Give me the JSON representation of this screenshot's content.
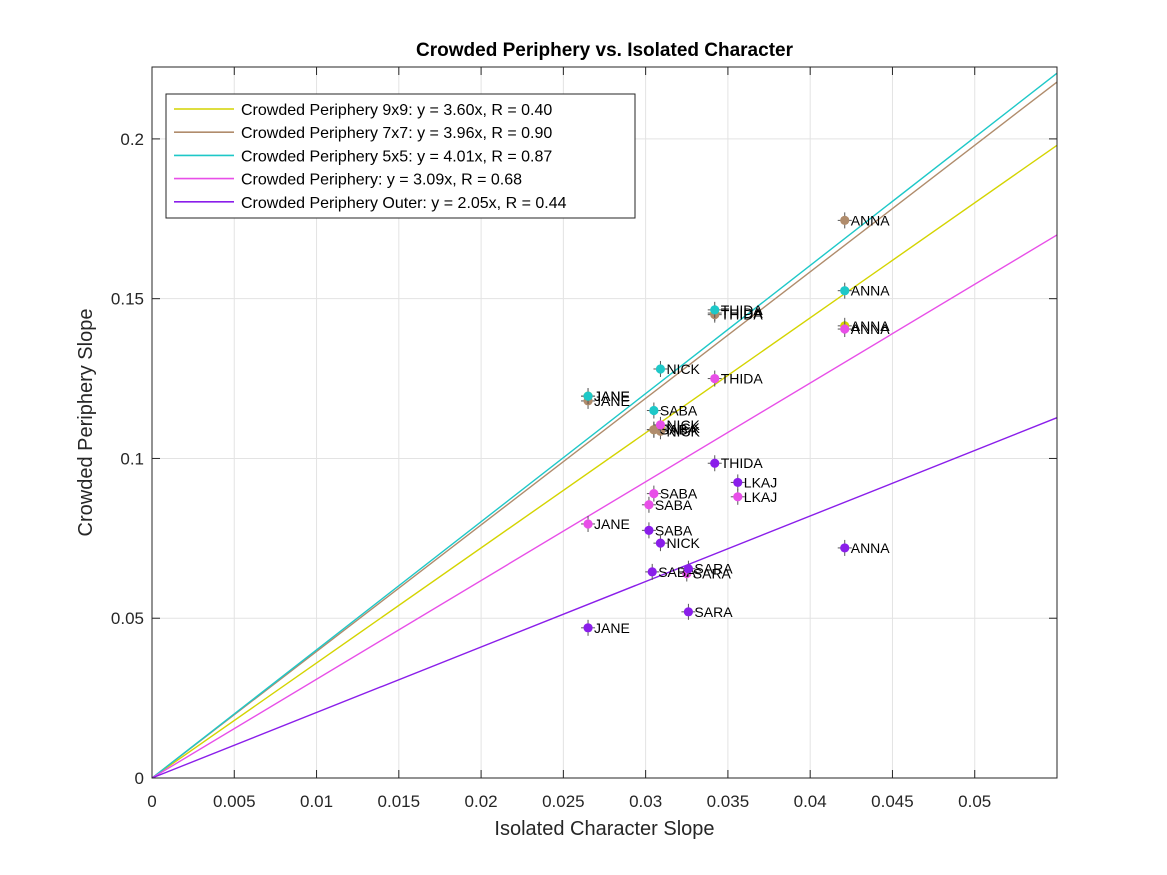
{
  "chart_data": {
    "type": "scatter",
    "title": "Crowded Periphery vs. Isolated Character",
    "xlabel": "Isolated Character Slope",
    "ylabel": "Crowded Periphery Slope",
    "xlim": [
      0,
      0.055
    ],
    "ylim": [
      0,
      0.2225
    ],
    "xticks": [
      0,
      0.005,
      0.01,
      0.015,
      0.02,
      0.025,
      0.03,
      0.035,
      0.04,
      0.045,
      0.05
    ],
    "xtick_labels": [
      "0",
      "0.005",
      "0.01",
      "0.015",
      "0.02",
      "0.025",
      "0.03",
      "0.035",
      "0.04",
      "0.045",
      "0.05"
    ],
    "yticks": [
      0,
      0.05,
      0.1,
      0.15,
      0.2
    ],
    "ytick_labels": [
      "0",
      "0.05",
      "0.1",
      "0.15",
      "0.2"
    ],
    "grid": true,
    "legend_position": "top-left",
    "series": [
      {
        "name": "Crowded Periphery 9x9: y = 3.60x, R = 0.40",
        "color": "#d4d400",
        "slope": 3.6,
        "points": [
          {
            "label": "ANNA",
            "x": 0.0421,
            "y": 0.1415
          },
          {
            "label": "THIDA",
            "x": 0.0342,
            "y": 0.1455
          },
          {
            "label": "JANE",
            "x": 0.0265,
            "y": 0.1195
          },
          {
            "label": "NICK",
            "x": 0.0309,
            "y": 0.1095
          },
          {
            "label": "SABA",
            "x": 0.0305,
            "y": 0.109
          }
        ]
      },
      {
        "name": "Crowded Periphery 7x7: y = 3.96x, R = 0.90",
        "color": "#b08c6c",
        "slope": 3.96,
        "points": [
          {
            "label": "ANNA",
            "x": 0.0421,
            "y": 0.1745
          },
          {
            "label": "THIDA",
            "x": 0.0342,
            "y": 0.145
          },
          {
            "label": "JANE",
            "x": 0.0265,
            "y": 0.118
          },
          {
            "label": "NICK",
            "x": 0.0309,
            "y": 0.1085
          },
          {
            "label": "SABA",
            "x": 0.0305,
            "y": 0.109
          }
        ]
      },
      {
        "name": "Crowded Periphery 5x5: y = 4.01x, R = 0.87",
        "color": "#1ec8c8",
        "slope": 4.01,
        "points": [
          {
            "label": "ANNA",
            "x": 0.0421,
            "y": 0.1525
          },
          {
            "label": "THIDA",
            "x": 0.0342,
            "y": 0.1465
          },
          {
            "label": "NICK",
            "x": 0.0309,
            "y": 0.128
          },
          {
            "label": "JANE",
            "x": 0.0265,
            "y": 0.1195
          },
          {
            "label": "SABA",
            "x": 0.0305,
            "y": 0.115
          }
        ]
      },
      {
        "name": "Crowded Periphery: y = 3.09x, R = 0.68",
        "color": "#e84fe8",
        "slope": 3.09,
        "points": [
          {
            "label": "ANNA",
            "x": 0.0421,
            "y": 0.1405
          },
          {
            "label": "THIDA",
            "x": 0.0342,
            "y": 0.125
          },
          {
            "label": "NICK",
            "x": 0.0309,
            "y": 0.1105
          },
          {
            "label": "SABA",
            "x": 0.0305,
            "y": 0.089
          },
          {
            "label": "SABA",
            "x": 0.0302,
            "y": 0.0855
          },
          {
            "label": "LKAJ",
            "x": 0.0356,
            "y": 0.088
          },
          {
            "label": "JANE",
            "x": 0.0265,
            "y": 0.0795
          },
          {
            "label": "SARA",
            "x": 0.0325,
            "y": 0.064
          }
        ]
      },
      {
        "name": "Crowded Periphery Outer: y = 2.05x, R = 0.44",
        "color": "#8a1eea",
        "slope": 2.05,
        "points": [
          {
            "label": "THIDA",
            "x": 0.0342,
            "y": 0.0985
          },
          {
            "label": "LKAJ",
            "x": 0.0356,
            "y": 0.0925
          },
          {
            "label": "SABA",
            "x": 0.0302,
            "y": 0.0775
          },
          {
            "label": "NICK",
            "x": 0.0309,
            "y": 0.0735
          },
          {
            "label": "ANNA",
            "x": 0.0421,
            "y": 0.072
          },
          {
            "label": "SABA",
            "x": 0.0304,
            "y": 0.0645
          },
          {
            "label": "SARA",
            "x": 0.0326,
            "y": 0.0655
          },
          {
            "label": "SARA",
            "x": 0.0326,
            "y": 0.052
          },
          {
            "label": "JANE",
            "x": 0.0265,
            "y": 0.047
          }
        ]
      }
    ]
  }
}
